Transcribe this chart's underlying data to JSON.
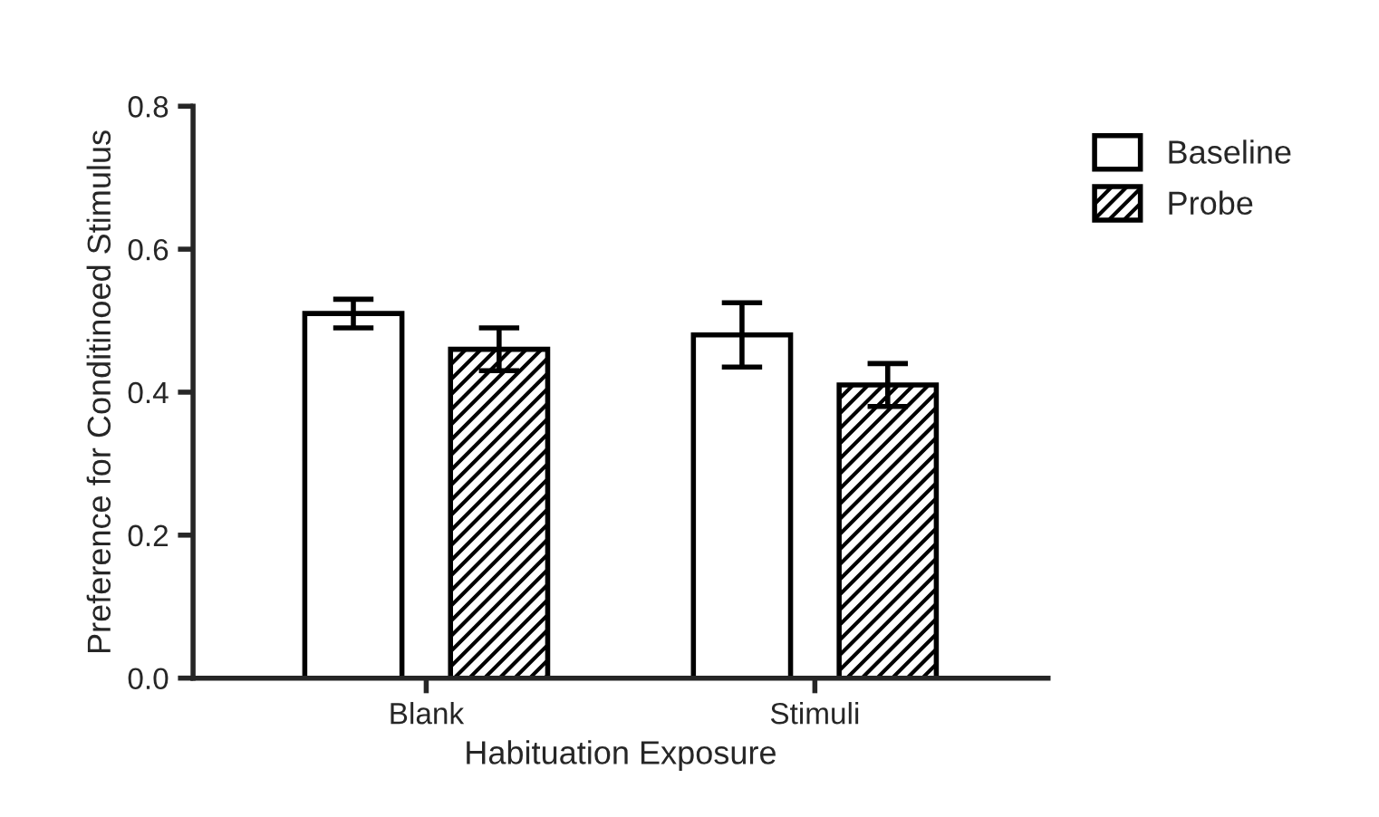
{
  "chart_data": {
    "type": "bar",
    "xlabel": "Habituation Exposure",
    "ylabel": "Preference for Conditinoed Stimulus",
    "categories": [
      "Blank",
      "Stimuli"
    ],
    "series": [
      {
        "name": "Baseline",
        "color": "#ffffff",
        "values": [
          0.51,
          0.48
        ],
        "errors": [
          0.02,
          0.045
        ]
      },
      {
        "name": "Probe",
        "color": "#000000",
        "values": [
          0.46,
          0.41
        ],
        "errors": [
          0.03,
          0.03
        ]
      }
    ],
    "ylim": [
      0,
      0.8
    ],
    "yticks": [
      {
        "value": 0,
        "label": "0.0"
      },
      0.2,
      0.4,
      0.6,
      0.8
    ],
    "grid": false,
    "legend": "top right"
  }
}
